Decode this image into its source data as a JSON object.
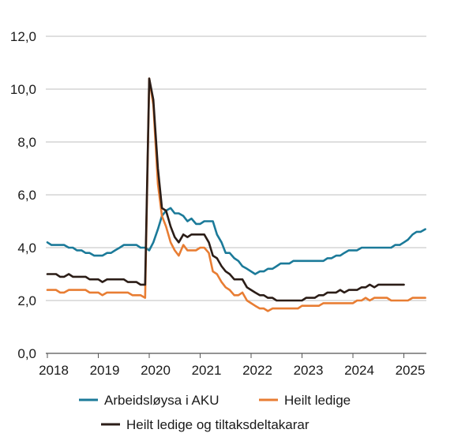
{
  "chart_data": {
    "type": "line",
    "title": "",
    "xlabel": "",
    "ylabel": "",
    "ylim": [
      0,
      12
    ],
    "yticks": [
      "0,0",
      "2,0",
      "4,0",
      "6,0",
      "8,0",
      "10,0",
      "12,0"
    ],
    "xticks": [
      "2018",
      "2019",
      "2020",
      "2021",
      "2022",
      "2023",
      "2024",
      "2025"
    ],
    "xlim": [
      2018,
      2025.5
    ],
    "grid": true,
    "legend_position": "bottom",
    "series": [
      {
        "name": "Arbeidsløysa i AKU",
        "color": "#1b7a99",
        "x": [
          2018.0,
          2018.08,
          2018.17,
          2018.33,
          2018.42,
          2018.5,
          2018.58,
          2018.67,
          2018.75,
          2018.83,
          2018.92,
          2019.0,
          2019.08,
          2019.17,
          2019.25,
          2019.33,
          2019.42,
          2019.5,
          2019.58,
          2019.67,
          2019.75,
          2019.83,
          2019.92,
          2020.0,
          2020.08,
          2020.17,
          2020.25,
          2020.33,
          2020.42,
          2020.5,
          2020.58,
          2020.67,
          2020.75,
          2020.83,
          2020.92,
          2021.0,
          2021.08,
          2021.17,
          2021.25,
          2021.33,
          2021.42,
          2021.5,
          2021.58,
          2021.67,
          2021.75,
          2021.83,
          2021.92,
          2022.0,
          2022.08,
          2022.17,
          2022.25,
          2022.33,
          2022.42,
          2022.5,
          2022.58,
          2022.67,
          2022.75,
          2022.83,
          2022.92,
          2023.0,
          2023.08,
          2023.17,
          2023.25,
          2023.33,
          2023.42,
          2023.5,
          2023.58,
          2023.67,
          2023.75,
          2023.83,
          2023.92,
          2024.0,
          2024.08,
          2024.17,
          2024.25,
          2024.33,
          2024.42,
          2024.5,
          2024.58,
          2024.67,
          2024.75,
          2024.83,
          2024.92,
          2025.0,
          2025.08,
          2025.17,
          2025.25,
          2025.33,
          2025.42
        ],
        "y": [
          4.2,
          4.1,
          4.1,
          4.1,
          4.0,
          4.0,
          3.9,
          3.9,
          3.8,
          3.8,
          3.7,
          3.7,
          3.7,
          3.8,
          3.8,
          3.9,
          4.0,
          4.1,
          4.1,
          4.1,
          4.1,
          4.0,
          4.0,
          3.9,
          4.2,
          4.7,
          5.2,
          5.4,
          5.5,
          5.3,
          5.3,
          5.2,
          5.0,
          5.1,
          4.9,
          4.9,
          5.0,
          5.0,
          5.0,
          4.5,
          4.2,
          3.8,
          3.8,
          3.6,
          3.5,
          3.3,
          3.2,
          3.1,
          3.0,
          3.1,
          3.1,
          3.2,
          3.2,
          3.3,
          3.4,
          3.4,
          3.4,
          3.5,
          3.5,
          3.5,
          3.5,
          3.5,
          3.5,
          3.5,
          3.5,
          3.6,
          3.6,
          3.7,
          3.7,
          3.8,
          3.9,
          3.9,
          3.9,
          4.0,
          4.0,
          4.0,
          4.0,
          4.0,
          4.0,
          4.0,
          4.0,
          4.1,
          4.1,
          4.2,
          4.3,
          4.5,
          4.6,
          4.6,
          4.7
        ]
      },
      {
        "name": "Heilt ledige",
        "color": "#e87d33",
        "x": [
          2018.0,
          2018.08,
          2018.17,
          2018.25,
          2018.33,
          2018.42,
          2018.5,
          2018.58,
          2018.67,
          2018.75,
          2018.83,
          2018.92,
          2019.0,
          2019.08,
          2019.17,
          2019.25,
          2019.33,
          2019.42,
          2019.5,
          2019.58,
          2019.67,
          2019.75,
          2019.83,
          2019.92,
          2020.0,
          2020.08,
          2020.17,
          2020.25,
          2020.33,
          2020.42,
          2020.5,
          2020.58,
          2020.67,
          2020.75,
          2020.83,
          2020.92,
          2021.0,
          2021.08,
          2021.17,
          2021.25,
          2021.33,
          2021.42,
          2021.5,
          2021.58,
          2021.67,
          2021.75,
          2021.83,
          2021.92,
          2022.0,
          2022.08,
          2022.17,
          2022.25,
          2022.33,
          2022.42,
          2022.5,
          2022.58,
          2022.67,
          2022.75,
          2022.83,
          2022.92,
          2023.0,
          2023.08,
          2023.17,
          2023.25,
          2023.33,
          2023.42,
          2023.5,
          2023.58,
          2023.67,
          2023.75,
          2023.83,
          2023.92,
          2024.0,
          2024.08,
          2024.17,
          2024.25,
          2024.33,
          2024.42,
          2024.5,
          2024.58,
          2024.67,
          2024.75,
          2024.83,
          2024.92,
          2025.0,
          2025.08,
          2025.17,
          2025.25,
          2025.33,
          2025.42
        ],
        "y": [
          2.4,
          2.4,
          2.4,
          2.3,
          2.3,
          2.4,
          2.4,
          2.4,
          2.4,
          2.4,
          2.3,
          2.3,
          2.3,
          2.2,
          2.3,
          2.3,
          2.3,
          2.3,
          2.3,
          2.3,
          2.2,
          2.2,
          2.2,
          2.1,
          10.4,
          9.4,
          6.4,
          5.2,
          4.8,
          4.2,
          3.9,
          3.7,
          4.1,
          3.9,
          3.9,
          3.9,
          4.0,
          4.0,
          3.8,
          3.1,
          3.0,
          2.7,
          2.5,
          2.4,
          2.2,
          2.2,
          2.3,
          2.0,
          1.9,
          1.8,
          1.7,
          1.7,
          1.6,
          1.7,
          1.7,
          1.7,
          1.7,
          1.7,
          1.7,
          1.7,
          1.8,
          1.8,
          1.8,
          1.8,
          1.8,
          1.9,
          1.9,
          1.9,
          1.9,
          1.9,
          1.9,
          1.9,
          1.9,
          2.0,
          2.0,
          2.1,
          2.0,
          2.1,
          2.1,
          2.1,
          2.1,
          2.0,
          2.0,
          2.0,
          2.0,
          2.0,
          2.1,
          2.1,
          2.1,
          2.1
        ]
      },
      {
        "name": "Heilt ledige og tiltaksdeltakarar",
        "color": "#2b1d17",
        "x": [
          2018.0,
          2018.08,
          2018.17,
          2018.25,
          2018.33,
          2018.42,
          2018.5,
          2018.58,
          2018.67,
          2018.75,
          2018.83,
          2018.92,
          2019.0,
          2019.08,
          2019.17,
          2019.25,
          2019.33,
          2019.42,
          2019.5,
          2019.58,
          2019.67,
          2019.75,
          2019.83,
          2019.92,
          2020.0,
          2020.08,
          2020.17,
          2020.25,
          2020.33,
          2020.42,
          2020.5,
          2020.58,
          2020.67,
          2020.75,
          2020.83,
          2020.92,
          2021.0,
          2021.08,
          2021.17,
          2021.25,
          2021.33,
          2021.42,
          2021.5,
          2021.58,
          2021.67,
          2021.75,
          2021.83,
          2021.92,
          2022.0,
          2022.08,
          2022.17,
          2022.25,
          2022.33,
          2022.42,
          2022.5,
          2022.58,
          2022.67,
          2022.75,
          2022.83,
          2022.92,
          2023.0,
          2023.08,
          2023.17,
          2023.25,
          2023.33,
          2023.42,
          2023.5,
          2023.58,
          2023.67,
          2023.75,
          2023.83,
          2023.92,
          2024.0,
          2024.08,
          2024.17,
          2024.25,
          2024.33,
          2024.42,
          2024.5,
          2024.58,
          2024.67,
          2024.75,
          2024.83,
          2024.92,
          2025.0
        ],
        "y": [
          3.0,
          3.0,
          3.0,
          2.9,
          2.9,
          3.0,
          2.9,
          2.9,
          2.9,
          2.9,
          2.8,
          2.8,
          2.8,
          2.7,
          2.8,
          2.8,
          2.8,
          2.8,
          2.8,
          2.7,
          2.7,
          2.7,
          2.6,
          2.6,
          10.4,
          9.6,
          7.0,
          5.5,
          5.4,
          4.8,
          4.4,
          4.2,
          4.5,
          4.4,
          4.5,
          4.5,
          4.5,
          4.5,
          4.2,
          3.7,
          3.6,
          3.3,
          3.1,
          3.0,
          2.8,
          2.8,
          2.8,
          2.5,
          2.4,
          2.3,
          2.2,
          2.2,
          2.1,
          2.1,
          2.0,
          2.0,
          2.0,
          2.0,
          2.0,
          2.0,
          2.0,
          2.1,
          2.1,
          2.1,
          2.2,
          2.2,
          2.3,
          2.3,
          2.3,
          2.4,
          2.3,
          2.4,
          2.4,
          2.4,
          2.5,
          2.5,
          2.6,
          2.5,
          2.6,
          2.6,
          2.6,
          2.6,
          2.6,
          2.6,
          2.6
        ]
      }
    ]
  }
}
